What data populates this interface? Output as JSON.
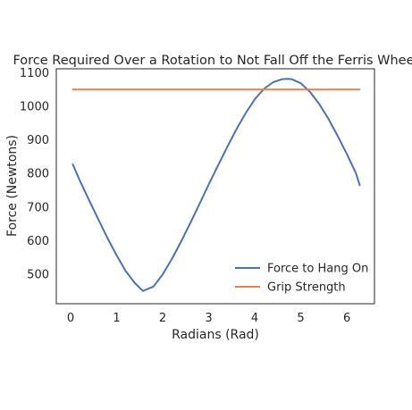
{
  "chart_data": {
    "type": "line",
    "title": "Force Required Over a Rotation to Not Fall Off the Ferris Wheel",
    "xlabel": "Radians (Rad)",
    "ylabel": "Force (Newtons)",
    "xlim": [
      -0.31,
      6.6
    ],
    "ylim": [
      412,
      1112
    ],
    "xticks": [
      0,
      1,
      2,
      3,
      4,
      5,
      6
    ],
    "yticks": [
      500,
      600,
      700,
      800,
      900,
      1000,
      1100
    ],
    "grid": false,
    "legend_position": "lower-right",
    "series": [
      {
        "name": "Force to Hang On",
        "color": "#4c72b0",
        "x": [
          0.05,
          0.2,
          0.4,
          0.6,
          0.8,
          1.0,
          1.2,
          1.4,
          1.57,
          1.8,
          2.0,
          2.2,
          2.4,
          2.6,
          2.8,
          3.0,
          3.2,
          3.4,
          3.6,
          3.8,
          4.0,
          4.2,
          4.4,
          4.6,
          4.71,
          4.8,
          5.0,
          5.2,
          5.4,
          5.6,
          5.8,
          6.0,
          6.2,
          6.28
        ],
        "y": [
          827,
          779,
          721,
          664,
          608,
          556,
          509,
          473,
          450,
          463,
          499,
          545,
          597,
          652,
          709,
          767,
          823,
          878,
          931,
          979,
          1021,
          1052,
          1072,
          1081,
          1082,
          1081,
          1069,
          1043,
          1007,
          963,
          912,
          858,
          800,
          765
        ]
      },
      {
        "name": "Grip Strength",
        "color": "#dd8452",
        "x": [
          0.05,
          6.28
        ],
        "y": [
          1050,
          1050
        ]
      }
    ]
  }
}
